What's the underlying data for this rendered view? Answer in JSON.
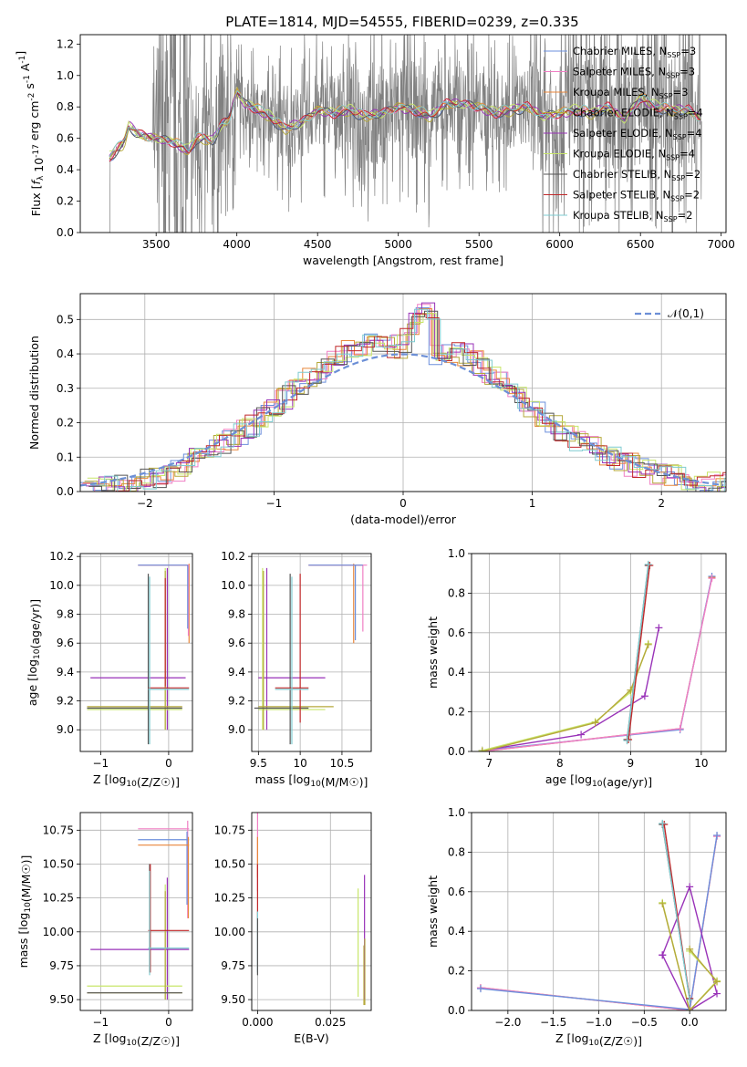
{
  "title": "PLATE=1814, MJD=54555, FIBERID=0239, z=0.335",
  "colors": {
    "Chabrier MILES": "#6b8fdc",
    "Salpeter MILES": "#f07fc4",
    "Kroupa MILES": "#e8863a",
    "Chabrier ELODIE": "#b5a93b",
    "Salpeter ELODIE": "#9932b8",
    "Kroupa ELODIE": "#c8e66a",
    "Chabrier STELIB": "#555555",
    "Salpeter STELIB": "#c0282a",
    "Kroupa STELIB": "#7ecbd0",
    "data": "#808080",
    "normal": "#6c8fd6"
  },
  "legend_labels": [
    "Chabrier MILES, N_SSP=3",
    "Salpeter MILES, N_SSP=3",
    "Kroupa MILES, N_SSP=3",
    "Chabrier ELODIE, N_SSP=4",
    "Salpeter ELODIE, N_SSP=4",
    "Kroupa ELODIE, N_SSP=4",
    "Chabrier STELIB, N_SSP=2",
    "Salpeter STELIB, N_SSP=2",
    "Kroupa STELIB, N_SSP=2"
  ],
  "chart_data": [
    {
      "id": "spectrum",
      "type": "line",
      "xlabel": "wavelength [Angstrom, rest frame]",
      "ylabel": "Flux [f_λ 10^-17 erg cm^-2 s^-1 A^-1]",
      "xlim": [
        3030,
        7030
      ],
      "ylim": [
        0,
        1.26
      ],
      "xticks": [
        3500,
        4000,
        4500,
        5000,
        5500,
        6000,
        6500,
        7000
      ],
      "yticks": [
        0.0,
        0.2,
        0.4,
        0.6,
        0.8,
        1.0,
        1.2
      ],
      "grid": false,
      "legend": "upper right",
      "data_range": [
        3200,
        6880
      ],
      "model_shape": {
        "x": [
          3200,
          3210,
          3300,
          3330,
          3400,
          3500,
          3600,
          3700,
          3750,
          3800,
          3850,
          3900,
          3950,
          4000,
          4050,
          4100,
          4200,
          4300,
          4400,
          4500,
          4600,
          4700,
          4800,
          4900,
          5000,
          5100,
          5200,
          5300,
          5400,
          5500,
          5600,
          5700,
          5800,
          5900,
          6000,
          6100,
          6200,
          6300,
          6400,
          6500,
          6600,
          6700,
          6800,
          6880
        ],
        "y": [
          0.0,
          0.48,
          0.57,
          0.68,
          0.62,
          0.6,
          0.58,
          0.52,
          0.6,
          0.6,
          0.58,
          0.68,
          0.72,
          0.9,
          0.82,
          0.8,
          0.74,
          0.66,
          0.7,
          0.78,
          0.76,
          0.78,
          0.74,
          0.76,
          0.8,
          0.78,
          0.74,
          0.82,
          0.82,
          0.8,
          0.76,
          0.78,
          0.8,
          0.74,
          0.76,
          0.78,
          0.76,
          0.8,
          0.72,
          0.86,
          0.8,
          0.78,
          0.78,
          0.72
        ]
      }
    },
    {
      "id": "residuals",
      "type": "histogram",
      "xlabel": "(data-model)/error",
      "ylabel": "Normed distribution",
      "xlim": [
        -2.5,
        2.5
      ],
      "ylim": [
        0,
        0.575
      ],
      "xticks": [
        -2,
        -1,
        0,
        1,
        2
      ],
      "yticks": [
        0.0,
        0.1,
        0.2,
        0.3,
        0.4,
        0.5
      ],
      "grid": true,
      "legend_label": "𝒩(0,1)",
      "legend": "upper right",
      "bin_width": 0.1,
      "base_hist": {
        "x": [
          -2.5,
          -2.0,
          -1.75,
          -1.5,
          -1.25,
          -1.0,
          -0.75,
          -0.5,
          -0.25,
          0.0,
          0.1,
          0.2,
          0.5,
          0.75,
          1.0,
          1.25,
          1.5,
          1.75,
          2.0,
          2.25,
          2.5
        ],
        "y": [
          0.0,
          0.03,
          0.06,
          0.12,
          0.17,
          0.24,
          0.32,
          0.4,
          0.43,
          0.42,
          0.5,
          0.4,
          0.4,
          0.32,
          0.24,
          0.17,
          0.12,
          0.08,
          0.05,
          0.03,
          0.02
        ]
      }
    },
    {
      "id": "age-vs-Z",
      "type": "errorbar",
      "xlabel": "Z [log10(Z/Z☉)]",
      "ylabel": "age [log10(age/yr)]",
      "xlim": [
        -1.3,
        0.35
      ],
      "ylim": [
        8.85,
        10.22
      ],
      "xticks": [
        -1,
        0
      ],
      "yticks": [
        9.0,
        9.2,
        9.4,
        9.6,
        9.8,
        10.0,
        10.2
      ],
      "grid": true,
      "segments": [
        {
          "model": "Kroupa MILES",
          "h": [
            -0.45,
            0.3,
            10.14
          ],
          "v": [
            0.3,
            9.6,
            10.15
          ]
        },
        {
          "model": "Salpeter MILES",
          "h": [
            -0.45,
            0.3,
            10.14
          ],
          "v": [
            0.29,
            9.65,
            10.14
          ]
        },
        {
          "model": "Chabrier MILES",
          "h": [
            -0.45,
            0.28,
            10.14
          ],
          "v": [
            0.28,
            9.7,
            10.14
          ]
        },
        {
          "model": "Salpeter ELODIE",
          "h": [
            -1.15,
            0.25,
            9.36
          ],
          "v": [
            -0.02,
            9.0,
            10.12
          ]
        },
        {
          "model": "Kroupa ELODIE",
          "h": [
            -1.2,
            0.2,
            9.14
          ],
          "v": [
            -0.05,
            9.0,
            10.12
          ]
        },
        {
          "model": "Chabrier ELODIE",
          "h": [
            -1.2,
            0.2,
            9.16
          ],
          "v": [
            -0.05,
            9.0,
            10.1
          ]
        },
        {
          "model": "Chabrier STELIB",
          "h": [
            -1.2,
            0.2,
            9.15
          ],
          "v": [
            -0.3,
            8.9,
            10.08
          ]
        },
        {
          "model": "Salpeter STELIB",
          "h": [
            -0.3,
            0.3,
            9.29
          ],
          "v": [
            -0.05,
            9.3,
            10.05
          ]
        },
        {
          "model": "Kroupa STELIB",
          "h": [
            -0.3,
            0.3,
            9.28
          ],
          "v": [
            -0.28,
            8.9,
            10.06
          ]
        }
      ]
    },
    {
      "id": "age-vs-mass",
      "type": "errorbar",
      "xlabel": "mass [log10(M/M☉)]",
      "ylabel": "",
      "xlim": [
        9.42,
        10.85
      ],
      "ylim": [
        8.85,
        10.22
      ],
      "xticks": [
        9.5,
        10.0,
        10.5
      ],
      "yticks": [
        9.0,
        9.2,
        9.4,
        9.6,
        9.8,
        10.0,
        10.2
      ],
      "grid": true,
      "segments": [
        {
          "model": "Kroupa MILES",
          "h": [
            10.1,
            10.75,
            10.14
          ],
          "v": [
            10.64,
            9.6,
            10.15
          ]
        },
        {
          "model": "Salpeter MILES",
          "h": [
            10.1,
            10.8,
            10.14
          ],
          "v": [
            10.75,
            9.68,
            10.14
          ]
        },
        {
          "model": "Chabrier MILES",
          "h": [
            10.1,
            10.75,
            10.14
          ],
          "v": [
            10.66,
            9.62,
            10.14
          ]
        },
        {
          "model": "Salpeter ELODIE",
          "h": [
            9.5,
            10.3,
            9.36
          ],
          "v": [
            9.6,
            9.0,
            10.12
          ]
        },
        {
          "model": "Kroupa ELODIE",
          "h": [
            9.5,
            10.3,
            9.14
          ],
          "v": [
            9.55,
            9.0,
            10.12
          ]
        },
        {
          "model": "Chabrier ELODIE",
          "h": [
            9.5,
            10.4,
            9.16
          ],
          "v": [
            9.56,
            9.0,
            10.1
          ]
        },
        {
          "model": "Chabrier STELIB",
          "h": [
            9.45,
            10.1,
            9.15
          ],
          "v": [
            9.88,
            8.9,
            10.08
          ]
        },
        {
          "model": "Salpeter STELIB",
          "h": [
            9.7,
            10.1,
            9.29
          ],
          "v": [
            10.0,
            9.05,
            10.08
          ]
        },
        {
          "model": "Kroupa STELIB",
          "h": [
            9.7,
            10.1,
            9.28
          ],
          "v": [
            9.9,
            8.9,
            10.06
          ]
        }
      ]
    },
    {
      "id": "massweight-vs-age",
      "type": "line",
      "xlabel": "age [log10(age/yr)]",
      "ylabel": "mass weight",
      "xlim": [
        6.75,
        10.35
      ],
      "ylim": [
        0,
        1.0
      ],
      "xticks": [
        7,
        8,
        9,
        10
      ],
      "yticks": [
        0.0,
        0.2,
        0.4,
        0.6,
        0.8,
        1.0
      ],
      "grid": true,
      "series": [
        {
          "model": "Kroupa MILES",
          "x": [
            6.9,
            9.7,
            10.15
          ],
          "y": [
            0.0,
            0.115,
            0.88
          ]
        },
        {
          "model": "Chabrier MILES",
          "x": [
            6.9,
            9.7,
            10.15
          ],
          "y": [
            0.005,
            0.11,
            0.885
          ]
        },
        {
          "model": "Salpeter MILES",
          "x": [
            6.9,
            9.7,
            10.15
          ],
          "y": [
            0.0,
            0.115,
            0.875
          ]
        },
        {
          "model": "Salpeter ELODIE",
          "x": [
            6.9,
            8.3,
            9.2,
            9.4
          ],
          "y": [
            0.005,
            0.085,
            0.28,
            0.625
          ]
        },
        {
          "model": "Kroupa ELODIE",
          "x": [
            6.9,
            8.5,
            9.0,
            9.25
          ],
          "y": [
            0.005,
            0.15,
            0.3,
            0.545
          ]
        },
        {
          "model": "Chabrier ELODIE",
          "x": [
            6.9,
            8.5,
            9.0,
            9.25
          ],
          "y": [
            0.0,
            0.145,
            0.31,
            0.54
          ]
        },
        {
          "model": "Chabrier STELIB",
          "x": [
            8.95,
            9.25
          ],
          "y": [
            0.06,
            0.94
          ]
        },
        {
          "model": "Salpeter STELIB",
          "x": [
            8.97,
            9.27
          ],
          "y": [
            0.06,
            0.94
          ]
        },
        {
          "model": "Kroupa STELIB",
          "x": [
            8.95,
            9.25
          ],
          "y": [
            0.055,
            0.945
          ]
        }
      ]
    },
    {
      "id": "mass-vs-Z",
      "type": "errorbar",
      "xlabel": "Z [log10(Z/Z☉)]",
      "ylabel": "mass [log10(M/M☉)]",
      "xlim": [
        -1.3,
        0.35
      ],
      "ylim": [
        9.42,
        10.88
      ],
      "xticks": [
        -1,
        0
      ],
      "yticks": [
        9.5,
        9.75,
        10.0,
        10.25,
        10.5,
        10.75
      ],
      "grid": true,
      "segments": [
        {
          "model": "Salpeter MILES",
          "h": [
            -0.45,
            0.3,
            10.76
          ],
          "v": [
            0.28,
            10.1,
            10.82
          ]
        },
        {
          "model": "Chabrier MILES",
          "h": [
            -0.45,
            0.3,
            10.68
          ],
          "v": [
            0.27,
            10.2,
            10.74
          ]
        },
        {
          "model": "Kroupa MILES",
          "h": [
            -0.45,
            0.3,
            10.64
          ],
          "v": [
            0.29,
            10.1,
            10.7
          ]
        },
        {
          "model": "Salpeter ELODIE",
          "h": [
            -1.15,
            0.3,
            9.87
          ],
          "v": [
            -0.02,
            9.5,
            10.4
          ]
        },
        {
          "model": "Kroupa ELODIE",
          "h": [
            -1.2,
            0.2,
            9.6
          ],
          "v": [
            -0.05,
            9.5,
            10.35
          ]
        },
        {
          "model": "Chabrier ELODIE",
          "h": [
            -1.2,
            0.2,
            9.55
          ],
          "v": [
            -0.05,
            9.5,
            10.3
          ]
        },
        {
          "model": "Chabrier STELIB",
          "h": [
            -1.2,
            0.2,
            9.55
          ],
          "v": [
            -0.28,
            9.7,
            10.5
          ]
        },
        {
          "model": "Salpeter STELIB",
          "h": [
            -0.3,
            0.3,
            10.01
          ],
          "v": [
            -0.27,
            9.7,
            10.5
          ]
        },
        {
          "model": "Kroupa STELIB",
          "h": [
            -0.3,
            0.3,
            9.88
          ],
          "v": [
            -0.28,
            9.68,
            10.45
          ]
        }
      ]
    },
    {
      "id": "mass-vs-ebv",
      "type": "errorbar",
      "xlabel": "E(B-V)",
      "ylabel": "",
      "xlim": [
        -0.002,
        0.039
      ],
      "ylim": [
        9.42,
        10.88
      ],
      "xticks": [
        0.0,
        0.025
      ],
      "ytick_labels": [
        "9.50",
        "9.75",
        "10.00",
        "10.25",
        "10.50",
        "10.75"
      ],
      "xtick_labels": [
        "0.000",
        "0.025"
      ],
      "yticks": [
        9.5,
        9.75,
        10.0,
        10.25,
        10.5,
        10.75
      ],
      "grid": true,
      "segments": [
        {
          "model": "Salpeter MILES",
          "v": [
            0.0,
            10.3,
            10.88
          ]
        },
        {
          "model": "Kroupa MILES",
          "v": [
            0.0,
            10.4,
            10.7
          ]
        },
        {
          "model": "Salpeter STELIB",
          "v": [
            0.0,
            10.1,
            10.5
          ]
        },
        {
          "model": "Kroupa STELIB",
          "v": [
            0.0,
            9.7,
            10.15
          ]
        },
        {
          "model": "Chabrier STELIB",
          "v": [
            0.0,
            9.68,
            10.1
          ]
        },
        {
          "model": "Kroupa ELODIE",
          "v": [
            0.0345,
            9.52,
            10.32
          ]
        },
        {
          "model": "Chabrier ELODIE",
          "v": [
            0.0365,
            9.46,
            9.9
          ]
        },
        {
          "model": "Salpeter ELODIE",
          "v": [
            0.0367,
            9.5,
            10.42
          ]
        },
        {
          "model": "Chabrier ELODIE",
          "v": [
            0.0368,
            9.46,
            9.95
          ]
        }
      ]
    },
    {
      "id": "massweight-vs-Z",
      "type": "line",
      "xlabel": "Z [log10(Z/Z☉)]",
      "ylabel": "mass weight",
      "xlim": [
        -2.4,
        0.4
      ],
      "ylim": [
        0,
        1.0
      ],
      "xticks": [
        -2.0,
        -1.5,
        -1.0,
        -0.5,
        0.0
      ],
      "xtick_labels": [
        "−2.0",
        "−1.5",
        "−1.0",
        "−0.5",
        "0.0"
      ],
      "yticks": [
        0.0,
        0.2,
        0.4,
        0.6,
        0.8,
        1.0
      ],
      "grid": true,
      "series": [
        {
          "model": "Kroupa MILES",
          "x": [
            -2.3,
            0.0,
            0.3
          ],
          "y": [
            0.115,
            0.0,
            0.88
          ]
        },
        {
          "model": "Salpeter MILES",
          "x": [
            -2.3,
            0.0,
            0.3
          ],
          "y": [
            0.115,
            0.0,
            0.88
          ]
        },
        {
          "model": "Chabrier MILES",
          "x": [
            -2.3,
            0.0,
            0.3
          ],
          "y": [
            0.11,
            0.005,
            0.885
          ]
        },
        {
          "model": "Salpeter ELODIE",
          "x": [
            -0.3,
            0.0,
            0.3,
            0.0,
            -0.3
          ],
          "y": [
            0.28,
            0.0,
            0.085,
            0.625,
            0.28
          ]
        },
        {
          "model": "Kroupa ELODIE",
          "x": [
            -0.3,
            0.0,
            0.3,
            0.0
          ],
          "y": [
            0.545,
            0.0,
            0.15,
            0.3
          ]
        },
        {
          "model": "Chabrier ELODIE",
          "x": [
            -0.3,
            0.0,
            0.3,
            0.0
          ],
          "y": [
            0.54,
            0.0,
            0.145,
            0.31
          ]
        },
        {
          "model": "Chabrier STELIB",
          "x": [
            -0.3,
            0.0
          ],
          "y": [
            0.94,
            0.06
          ]
        },
        {
          "model": "Salpeter STELIB",
          "x": [
            -0.28,
            0.0
          ],
          "y": [
            0.94,
            0.06
          ]
        },
        {
          "model": "Kroupa STELIB",
          "x": [
            -0.3,
            0.0
          ],
          "y": [
            0.945,
            0.055
          ]
        }
      ]
    }
  ]
}
